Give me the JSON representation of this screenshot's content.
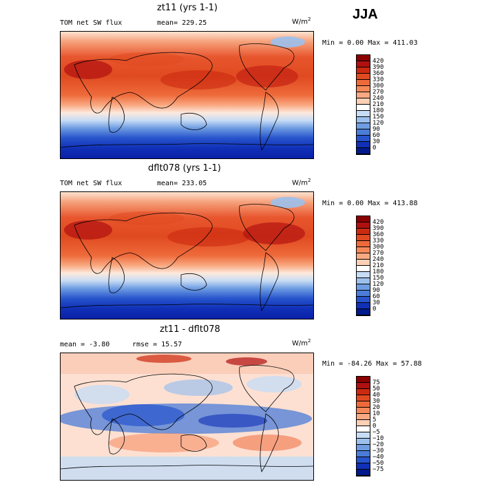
{
  "season": "JJA",
  "panels": [
    {
      "title": "zt11 (yrs 1-1)",
      "variable": "TOM net SW flux",
      "stat": "mean= 229.25",
      "units_base": "W/m",
      "units_exp": "2",
      "minmax": "Min =   0.00 Max = 411.03",
      "colorbar_levels": [
        "420",
        "390",
        "360",
        "330",
        "300",
        "270",
        "240",
        "210",
        "180",
        "150",
        "120",
        "90",
        "60",
        "30",
        "0"
      ],
      "colorbar_colors": [
        "#8b0000",
        "#b01010",
        "#cc2a10",
        "#e04a20",
        "#ee6a3a",
        "#f5895a",
        "#f9a982",
        "#fcd0b4",
        "#ffffff",
        "#c7dcf5",
        "#9cc0ec",
        "#6f9de2",
        "#4a7cd8",
        "#2754cc",
        "#1030b8",
        "#001a8c"
      ]
    },
    {
      "title": "dflt078 (yrs 1-1)",
      "variable": "TOM net SW flux",
      "stat": "mean= 233.05",
      "units_base": "W/m",
      "units_exp": "2",
      "minmax": "Min =   0.00 Max = 413.88",
      "colorbar_levels": [
        "420",
        "390",
        "360",
        "330",
        "300",
        "270",
        "240",
        "210",
        "180",
        "150",
        "120",
        "90",
        "60",
        "30",
        "0"
      ],
      "colorbar_colors": [
        "#8b0000",
        "#b01010",
        "#cc2a10",
        "#e04a20",
        "#ee6a3a",
        "#f5895a",
        "#f9a982",
        "#fcd0b4",
        "#ffffff",
        "#c7dcf5",
        "#9cc0ec",
        "#6f9de2",
        "#4a7cd8",
        "#2754cc",
        "#1030b8",
        "#001a8c"
      ]
    },
    {
      "title": "zt11 - dflt078",
      "variable": "mean =  -3.80",
      "stat": "rmse =  15.57",
      "units_base": "W/m",
      "units_exp": "2",
      "minmax": "Min = -84.26 Max =  57.88",
      "colorbar_levels": [
        "75",
        "50",
        "40",
        "30",
        "20",
        "10",
        "5",
        "0",
        "−5",
        "−10",
        "−20",
        "−30",
        "−40",
        "−50",
        "−75"
      ],
      "colorbar_colors": [
        "#8b0000",
        "#b01010",
        "#cc2a10",
        "#e04a20",
        "#ee6a3a",
        "#f5895a",
        "#f9a982",
        "#fcd0b4",
        "#ffffff",
        "#c7dcf5",
        "#9cc0ec",
        "#6f9de2",
        "#4a7cd8",
        "#2754cc",
        "#1030b8",
        "#001a8c"
      ]
    }
  ]
}
